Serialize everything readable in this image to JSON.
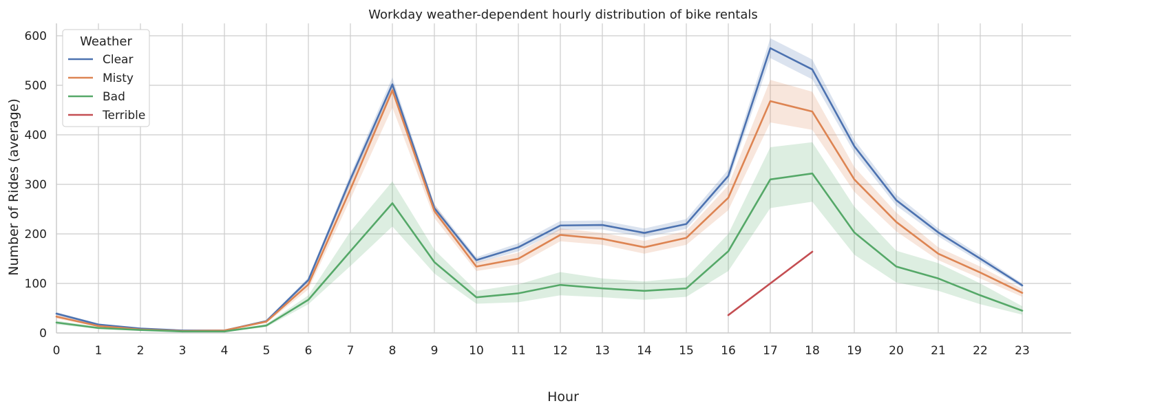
{
  "chart_data": {
    "type": "line",
    "title": "Workday weather-dependent hourly distribution of bike rentals",
    "xlabel": "Hour",
    "ylabel": "Number of Rides (average)",
    "xlim": [
      0,
      24
    ],
    "ylim": [
      0,
      625
    ],
    "x_ticks": [
      0,
      1,
      2,
      3,
      4,
      5,
      6,
      7,
      8,
      9,
      10,
      11,
      12,
      13,
      14,
      15,
      16,
      17,
      18,
      19,
      20,
      21,
      22,
      23
    ],
    "y_ticks": [
      0,
      100,
      200,
      300,
      400,
      500,
      600
    ],
    "grid": true,
    "legend": {
      "title": "Weather",
      "placement": "top-left"
    },
    "series": [
      {
        "name": "Clear",
        "color": "#4c72b0",
        "x": [
          0,
          1,
          2,
          3,
          4,
          5,
          6,
          7,
          8,
          9,
          10,
          11,
          12,
          13,
          14,
          15,
          16,
          17,
          18,
          19,
          20,
          21,
          22,
          23
        ],
        "values": [
          39,
          17,
          9,
          5,
          5,
          24,
          107,
          310,
          502,
          252,
          147,
          173,
          217,
          218,
          202,
          220,
          317,
          575,
          532,
          377,
          268,
          203,
          150,
          96
        ],
        "lower": [
          36,
          15,
          8,
          4,
          4,
          22,
          102,
          300,
          488,
          244,
          141,
          165,
          208,
          209,
          193,
          210,
          305,
          555,
          512,
          364,
          257,
          195,
          143,
          92
        ],
        "upper": [
          42,
          19,
          10,
          6,
          6,
          26,
          112,
          320,
          516,
          260,
          153,
          181,
          226,
          227,
          211,
          230,
          330,
          595,
          552,
          390,
          279,
          211,
          157,
          100
        ]
      },
      {
        "name": "Misty",
        "color": "#dd8452",
        "x": [
          0,
          1,
          2,
          3,
          4,
          5,
          6,
          7,
          8,
          9,
          10,
          11,
          12,
          13,
          14,
          15,
          16,
          17,
          18,
          19,
          20,
          21,
          22,
          23
        ],
        "values": [
          33,
          14,
          7,
          4,
          5,
          23,
          98,
          290,
          490,
          246,
          134,
          150,
          198,
          190,
          173,
          192,
          273,
          468,
          447,
          310,
          224,
          160,
          122,
          81
        ],
        "lower": [
          29,
          12,
          6,
          3,
          4,
          20,
          88,
          270,
          455,
          232,
          125,
          138,
          185,
          178,
          160,
          178,
          248,
          425,
          410,
          285,
          205,
          147,
          110,
          73
        ],
        "upper": [
          37,
          16,
          8,
          5,
          6,
          26,
          108,
          310,
          505,
          260,
          143,
          162,
          211,
          202,
          186,
          206,
          298,
          511,
          487,
          335,
          243,
          173,
          134,
          89
        ]
      },
      {
        "name": "Bad",
        "color": "#55a868",
        "x": [
          0,
          1,
          2,
          3,
          4,
          5,
          6,
          7,
          8,
          9,
          10,
          11,
          12,
          13,
          14,
          15,
          16,
          17,
          18,
          19,
          20,
          21,
          22,
          23
        ],
        "values": [
          21,
          10,
          6,
          3,
          3,
          15,
          67,
          165,
          262,
          143,
          72,
          80,
          97,
          90,
          85,
          90,
          165,
          310,
          322,
          203,
          134,
          110,
          76,
          45
        ],
        "lower": [
          17,
          8,
          5,
          2,
          2,
          12,
          58,
          135,
          215,
          120,
          59,
          62,
          76,
          72,
          67,
          73,
          125,
          252,
          265,
          158,
          102,
          85,
          58,
          37
        ],
        "upper": [
          25,
          12,
          7,
          4,
          4,
          18,
          76,
          205,
          306,
          168,
          85,
          98,
          123,
          110,
          104,
          112,
          200,
          375,
          385,
          255,
          166,
          141,
          100,
          54
        ]
      },
      {
        "name": "Terrible",
        "color": "#c44e52",
        "x": [
          16,
          18
        ],
        "values": [
          36,
          164
        ]
      }
    ]
  }
}
